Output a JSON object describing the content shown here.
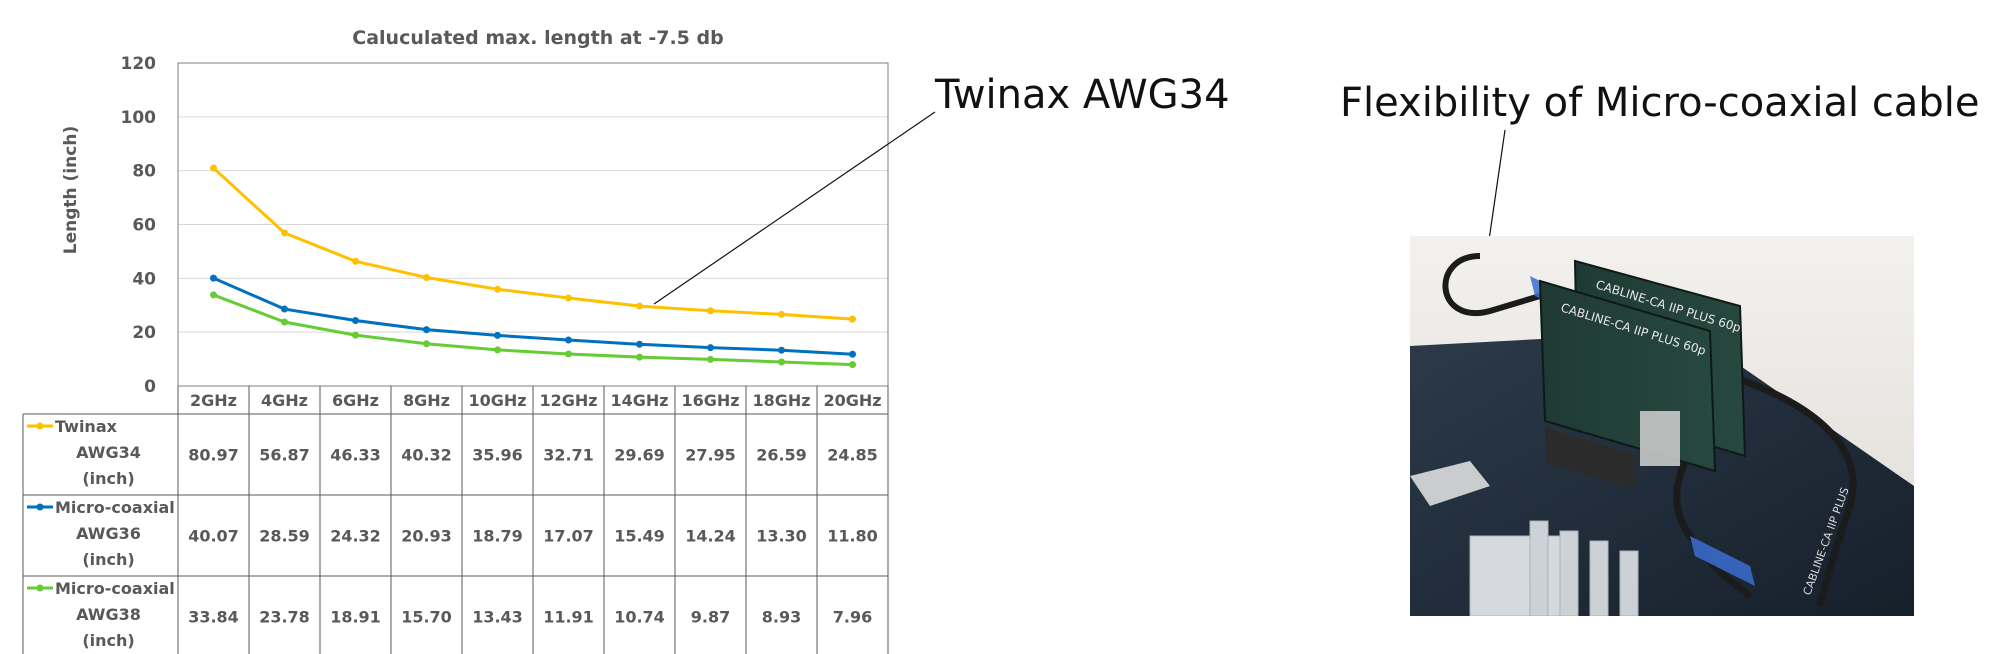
{
  "chart_data": {
    "type": "line",
    "title": "Caluculated max. length at -7.5 db",
    "ylabel": "Length (inch)",
    "xlabel": "",
    "ylim": [
      0,
      120
    ],
    "yticks": [
      "0",
      "20",
      "40",
      "60",
      "80",
      "100",
      "120"
    ],
    "grid": true,
    "legend": "data-table",
    "categories": [
      "2GHz",
      "4GHz",
      "6GHz",
      "8GHz",
      "10GHz",
      "12GHz",
      "14GHz",
      "16GHz",
      "18GHz",
      "20GHz"
    ],
    "series": [
      {
        "name_lines": [
          "Twinax",
          "AWG34",
          "(inch)"
        ],
        "color": "#FFC000",
        "values": [
          80.97,
          56.87,
          46.33,
          40.32,
          35.96,
          32.71,
          29.69,
          27.95,
          26.59,
          24.85
        ],
        "labels": [
          "80.97",
          "56.87",
          "46.33",
          "40.32",
          "35.96",
          "32.71",
          "29.69",
          "27.95",
          "26.59",
          "24.85"
        ]
      },
      {
        "name_lines": [
          "Micro-coaxial",
          "AWG36",
          "(inch)"
        ],
        "color": "#0070C0",
        "values": [
          40.07,
          28.59,
          24.32,
          20.93,
          18.79,
          17.07,
          15.49,
          14.24,
          13.3,
          11.8
        ],
        "labels": [
          "40.07",
          "28.59",
          "24.32",
          "20.93",
          "18.79",
          "17.07",
          "15.49",
          "14.24",
          "13.30",
          "11.80"
        ]
      },
      {
        "name_lines": [
          "Micro-coaxial",
          "AWG38",
          "(inch)"
        ],
        "color": "#66CC33",
        "values": [
          33.84,
          23.78,
          18.91,
          15.7,
          13.43,
          11.91,
          10.74,
          9.87,
          8.93,
          7.96
        ],
        "labels": [
          "33.84",
          "23.78",
          "18.91",
          "15.70",
          "13.43",
          "11.91",
          "10.74",
          "9.87",
          "8.93",
          "7.96"
        ]
      }
    ]
  },
  "callouts": {
    "twinax": "Twinax AWG34",
    "photo": "Flexibility of Micro-coaxial cable"
  },
  "photo": {
    "pcb_label_1": "CABLINE-CA IIP PLUS 60p",
    "pcb_label_2": "CABLINE-CA IIP PLUS 60p",
    "pcb_label_3": "CABLINE-CA IIP PLUS"
  }
}
